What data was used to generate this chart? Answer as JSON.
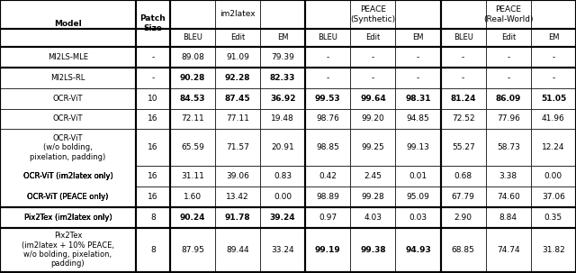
{
  "title": "",
  "col_headers_row1": [
    "Model",
    "Patch\nSize",
    "im2latex",
    "",
    "",
    "PEΑCE\n(Synthetic)",
    "",
    "",
    "PEΑCE\n(Real-World)",
    "",
    ""
  ],
  "col_headers_row2": [
    "",
    "",
    "BLEU",
    "Edit",
    "EM",
    "BLEU",
    "Edit",
    "EM",
    "BLEU",
    "Edit",
    "EM"
  ],
  "rows": [
    {
      "model": "MI2LS-MLE",
      "patch": "-",
      "data": [
        "89.08",
        "91.09",
        "79.39",
        "-",
        "-",
        "-",
        "-",
        "-",
        "-"
      ],
      "bold": [
        false,
        false,
        false,
        false,
        false,
        false,
        false,
        false,
        false
      ],
      "model_bold": false
    },
    {
      "model": "MI2LS-RL",
      "patch": "-",
      "data": [
        "90.28",
        "92.28",
        "82.33",
        "-",
        "-",
        "-",
        "-",
        "-",
        "-"
      ],
      "bold": [
        true,
        true,
        true,
        false,
        false,
        false,
        false,
        false,
        false
      ],
      "model_bold": false
    },
    {
      "model": "OCR-ViT",
      "patch": "10",
      "data": [
        "84.53",
        "87.45",
        "36.92",
        "99.53",
        "99.64",
        "98.31",
        "81.24",
        "86.09",
        "51.05"
      ],
      "bold": [
        true,
        true,
        true,
        true,
        true,
        true,
        true,
        true,
        true
      ],
      "model_bold": false
    },
    {
      "model": "OCR-ViT",
      "patch": "16",
      "data": [
        "72.11",
        "77.11",
        "19.48",
        "98.76",
        "99.20",
        "94.85",
        "72.52",
        "77.96",
        "41.96"
      ],
      "bold": [
        false,
        false,
        false,
        false,
        false,
        false,
        false,
        false,
        false
      ],
      "model_bold": false
    },
    {
      "model": "OCR-ViT\n(w/o bolding,\npixelation, padding)",
      "patch": "16",
      "data": [
        "65.59",
        "71.57",
        "20.91",
        "98.85",
        "99.25",
        "99.13",
        "55.27",
        "58.73",
        "12.24"
      ],
      "bold": [
        false,
        false,
        false,
        false,
        false,
        false,
        false,
        false,
        false
      ],
      "model_bold": false
    },
    {
      "model": "OCR-ViT (im2latex only)",
      "patch": "16",
      "data": [
        "31.11",
        "39.06",
        "0.83",
        "0.42",
        "2.45",
        "0.01",
        "0.68",
        "3.38",
        "0.00"
      ],
      "bold": [
        false,
        false,
        false,
        false,
        false,
        false,
        false,
        false,
        false
      ],
      "model_bold": false,
      "model_partial_bold": "only"
    },
    {
      "model": "OCR-ViT (PEΑCE only)",
      "patch": "16",
      "data": [
        "1.60",
        "13.42",
        "0.00",
        "98.89",
        "99.28",
        "95.09",
        "67.79",
        "74.60",
        "37.06"
      ],
      "bold": [
        false,
        false,
        false,
        false,
        false,
        false,
        false,
        false,
        false
      ],
      "model_bold": false,
      "model_partial_bold": "only"
    },
    {
      "model": "Pix2Tex (im2latex only)",
      "patch": "8",
      "data": [
        "90.24",
        "91.78",
        "39.24",
        "0.97",
        "4.03",
        "0.03",
        "2.90",
        "8.84",
        "0.35"
      ],
      "bold": [
        true,
        true,
        true,
        false,
        false,
        false,
        false,
        false,
        false
      ],
      "model_bold": false,
      "model_partial_bold": "only"
    },
    {
      "model": "Pix2Tex\n(im2latex + 10% PEΑCE,\nw/o bolding, pixelation,\npadding)",
      "patch": "8",
      "data": [
        "87.95",
        "89.44",
        "33.24",
        "99.19",
        "99.38",
        "94.93",
        "68.85",
        "74.74",
        "31.82"
      ],
      "bold": [
        false,
        false,
        false,
        true,
        true,
        true,
        false,
        false,
        false
      ],
      "model_bold": false
    }
  ],
  "group_separators_after": [
    1,
    6,
    7
  ],
  "heavy_separators_after": [
    1,
    6,
    7
  ]
}
